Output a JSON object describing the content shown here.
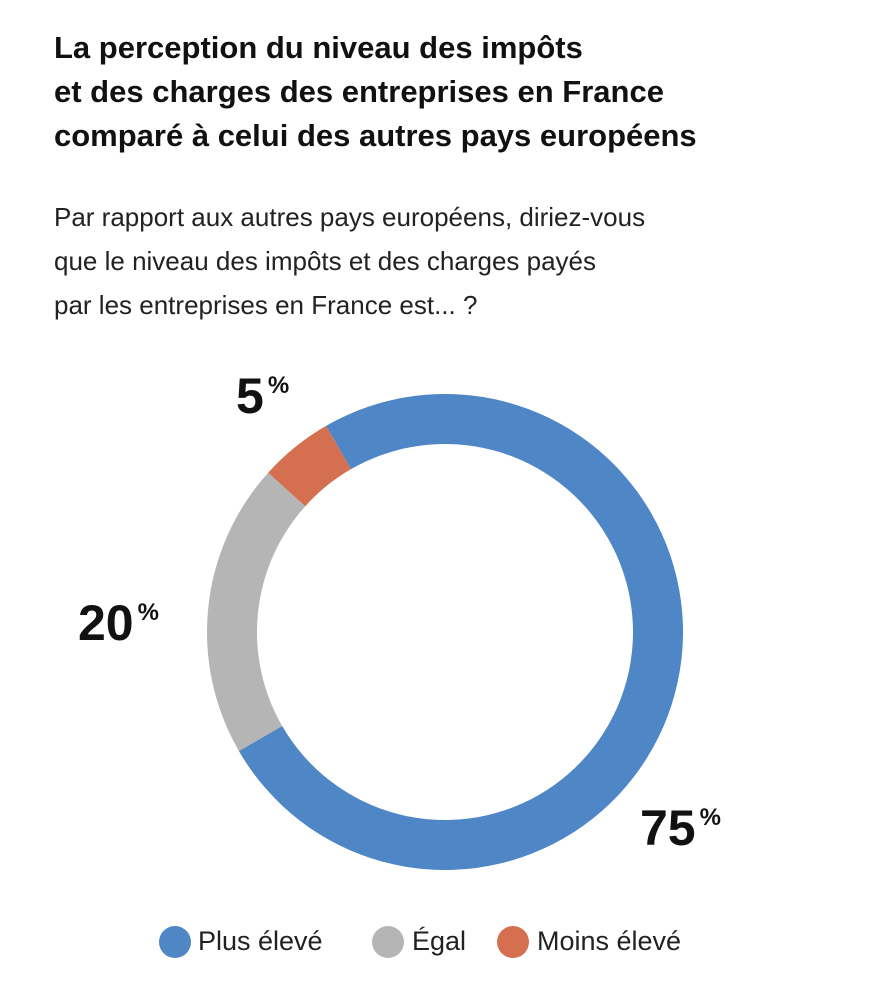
{
  "chart_data": {
    "type": "pie",
    "title": [
      "La perception du niveau des impôts",
      "et des charges des entreprises en France",
      "comparé à celui des autres pays européens"
    ],
    "subtitle": [
      "Par rapport aux autres pays européens, diriez-vous",
      "que le niveau des impôts et des charges payés",
      "par les entreprises en France est... ?"
    ],
    "categories": [
      "Plus élevé",
      "Égal",
      "Moins élevé"
    ],
    "values": [
      75,
      20,
      5
    ],
    "value_labels": [
      "75%",
      "20%",
      "5%"
    ],
    "colors": [
      "#4e86c6",
      "#b5b5b5",
      "#d46f50"
    ],
    "donut": true
  }
}
